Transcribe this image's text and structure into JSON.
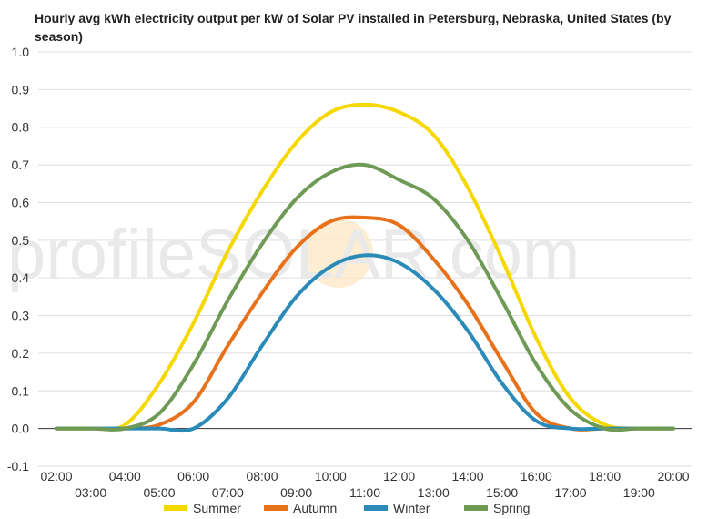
{
  "chart_data": {
    "type": "line",
    "title": "Hourly avg kWh electricity output per kW of Solar PV installed in Petersburg, Nebraska, United States (by season)",
    "xlabel": "",
    "ylabel": "",
    "ylim": [
      -0.1,
      1.0
    ],
    "y_ticks": [
      "-0.1",
      "0.0",
      "0.1",
      "0.2",
      "0.3",
      "0.4",
      "0.5",
      "0.6",
      "0.7",
      "0.8",
      "0.9",
      "1.0"
    ],
    "categories": [
      "02:00",
      "03:00",
      "04:00",
      "05:00",
      "06:00",
      "07:00",
      "08:00",
      "09:00",
      "10:00",
      "11:00",
      "12:00",
      "13:00",
      "14:00",
      "15:00",
      "16:00",
      "17:00",
      "18:00",
      "19:00",
      "20:00"
    ],
    "grid": true,
    "legend_position": "bottom",
    "series": [
      {
        "name": "Summer",
        "color": "#f5d800",
        "values": [
          0,
          0,
          0.01,
          0.12,
          0.28,
          0.47,
          0.63,
          0.76,
          0.84,
          0.86,
          0.84,
          0.78,
          0.64,
          0.45,
          0.24,
          0.08,
          0.01,
          0,
          0
        ]
      },
      {
        "name": "Autumn",
        "color": "#e8711c",
        "values": [
          0,
          0,
          0,
          0.01,
          0.07,
          0.22,
          0.36,
          0.48,
          0.55,
          0.56,
          0.54,
          0.45,
          0.33,
          0.18,
          0.04,
          0,
          0,
          0,
          0
        ]
      },
      {
        "name": "Winter",
        "color": "#2a8ab8",
        "values": [
          0,
          0,
          0,
          0,
          0,
          0.08,
          0.22,
          0.35,
          0.43,
          0.46,
          0.44,
          0.37,
          0.26,
          0.12,
          0.02,
          0,
          0,
          0,
          0
        ]
      },
      {
        "name": "Spring",
        "color": "#6e9a56",
        "values": [
          0,
          0,
          0,
          0.04,
          0.17,
          0.34,
          0.49,
          0.61,
          0.68,
          0.7,
          0.66,
          0.61,
          0.5,
          0.34,
          0.17,
          0.05,
          0,
          0,
          0
        ]
      }
    ]
  },
  "watermark": {
    "text": "profileSOLAR.com"
  }
}
